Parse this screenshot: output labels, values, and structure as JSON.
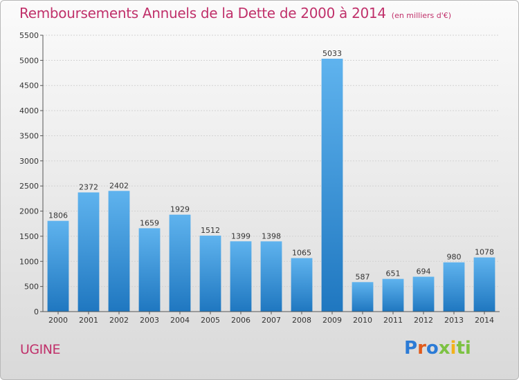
{
  "title": "Remboursements Annuels de la Dette de 2000 à 2014",
  "unit": "(en milliers d'€)",
  "commune": "UGINE",
  "brand": {
    "letters": [
      "P",
      "r",
      "o",
      "x",
      "i",
      "ti"
    ],
    "name": "Proxiti"
  },
  "colors": {
    "title": "#c0306a",
    "bar_top": "#5fb3ee",
    "bar_bottom": "#1f77c0"
  },
  "chart_data": {
    "type": "bar",
    "title": "Remboursements Annuels de la Dette de 2000 à 2014",
    "ylabel": "(en milliers d'€)",
    "xlabel": "",
    "categories": [
      "2000",
      "2001",
      "2002",
      "2003",
      "2004",
      "2005",
      "2006",
      "2007",
      "2008",
      "2009",
      "2010",
      "2011",
      "2012",
      "2013",
      "2014"
    ],
    "values": [
      1806,
      2372,
      2402,
      1659,
      1929,
      1512,
      1399,
      1398,
      1065,
      5033,
      587,
      651,
      694,
      980,
      1078
    ],
    "ylim": [
      0,
      5500
    ],
    "yticks": [
      0,
      500,
      1000,
      1500,
      2000,
      2500,
      3000,
      3500,
      4000,
      4500,
      5000,
      5500
    ],
    "grid": true
  }
}
